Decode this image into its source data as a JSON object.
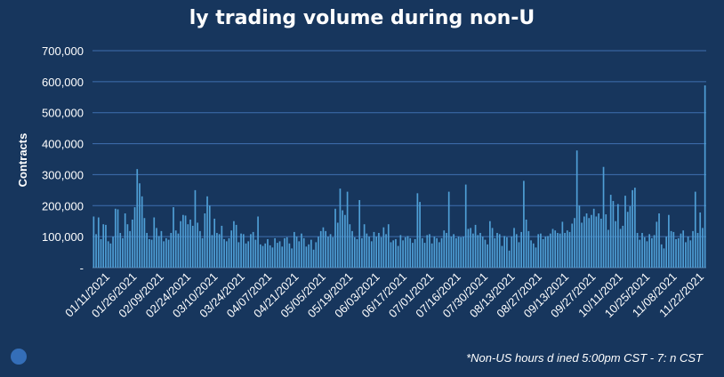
{
  "chart_data": {
    "type": "bar",
    "title": "ly trading volume during non-U",
    "ylabel": "Contracts",
    "xlabel": "",
    "ylim": [
      0,
      700000
    ],
    "y_ticks": [
      "-",
      "100,000",
      "200,000",
      "300,000",
      "400,000",
      "500,000",
      "600,000",
      "700,000"
    ],
    "x_tick_labels": [
      "01/11/2021",
      "01/26/2021",
      "02/09/2021",
      "02/24/2021",
      "03/10/2021",
      "03/24/2021",
      "04/07/2021",
      "04/21/2021",
      "05/05/2021",
      "05/19/2021",
      "06/03/2021",
      "06/17/2021",
      "07/01/2021",
      "07/16/2021",
      "07/30/2021",
      "08/13/2021",
      "08/27/2021",
      "09/13/2021",
      "09/27/2021",
      "10/11/2021",
      "10/25/2021",
      "11/08/2021",
      "11/22/2021"
    ],
    "grid": true,
    "bar_color": "#4f9fd6",
    "values": [
      165000,
      108000,
      162000,
      92000,
      140000,
      138000,
      85000,
      78000,
      100000,
      190000,
      188000,
      112000,
      95000,
      175000,
      140000,
      118000,
      155000,
      195000,
      318000,
      272000,
      230000,
      160000,
      112000,
      92000,
      90000,
      162000,
      128000,
      102000,
      118000,
      85000,
      95000,
      90000,
      112000,
      195000,
      120000,
      110000,
      150000,
      170000,
      168000,
      140000,
      155000,
      135000,
      250000,
      145000,
      118000,
      95000,
      175000,
      230000,
      200000,
      105000,
      158000,
      112000,
      108000,
      135000,
      92000,
      85000,
      95000,
      120000,
      150000,
      138000,
      82000,
      110000,
      108000,
      78000,
      85000,
      108000,
      115000,
      90000,
      165000,
      75000,
      70000,
      78000,
      92000,
      72000,
      65000,
      95000,
      80000,
      85000,
      68000,
      95000,
      98000,
      78000,
      62000,
      115000,
      100000,
      85000,
      110000,
      95000,
      68000,
      75000,
      90000,
      58000,
      82000,
      100000,
      118000,
      130000,
      118000,
      100000,
      108000,
      98000,
      190000,
      145000,
      255000,
      185000,
      170000,
      245000,
      140000,
      118000,
      98000,
      92000,
      218000,
      95000,
      140000,
      110000,
      100000,
      85000,
      115000,
      100000,
      112000,
      98000,
      130000,
      108000,
      140000,
      82000,
      88000,
      92000,
      70000,
      105000,
      88000,
      98000,
      102000,
      95000,
      80000,
      92000,
      240000,
      212000,
      95000,
      80000,
      105000,
      108000,
      78000,
      100000,
      95000,
      82000,
      95000,
      120000,
      112000,
      245000,
      100000,
      108000,
      95000,
      100000,
      98000,
      100000,
      268000,
      125000,
      128000,
      110000,
      138000,
      105000,
      112000,
      100000,
      90000,
      75000,
      150000,
      128000,
      95000,
      112000,
      108000,
      70000,
      102000,
      98000,
      55000,
      100000,
      128000,
      108000,
      82000,
      115000,
      280000,
      155000,
      118000,
      88000,
      78000,
      65000,
      108000,
      110000,
      92000,
      100000,
      102000,
      110000,
      125000,
      120000,
      112000,
      110000,
      148000,
      112000,
      120000,
      115000,
      142000,
      160000,
      378000,
      200000,
      145000,
      165000,
      175000,
      160000,
      170000,
      190000,
      165000,
      175000,
      158000,
      325000,
      172000,
      122000,
      235000,
      215000,
      150000,
      205000,
      125000,
      135000,
      232000,
      180000,
      198000,
      250000,
      258000,
      112000,
      90000,
      112000,
      98000,
      85000,
      108000,
      95000,
      105000,
      148000,
      175000,
      75000,
      62000,
      100000,
      170000,
      118000,
      115000,
      92000,
      95000,
      110000,
      120000,
      82000,
      100000,
      88000,
      118000,
      245000,
      112000,
      178000,
      128000,
      588000
    ]
  },
  "footnote": "*Non-US hours d    ined      5:00pm CST - 7:     n CST",
  "icons": {
    "logo": "brand-logo-icon"
  }
}
